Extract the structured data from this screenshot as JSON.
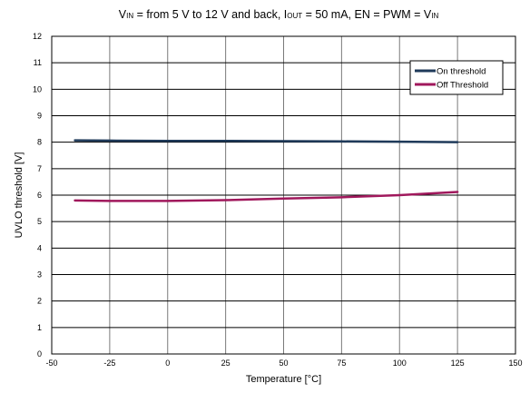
{
  "chart_data": {
    "type": "line",
    "title": {
      "parts": [
        {
          "t": "V"
        },
        {
          "t": "IN",
          "sub": true
        },
        {
          "t": " = from 5 V to 12 V and back, I"
        },
        {
          "t": "OUT",
          "sub": true
        },
        {
          "t": " = 50 mA, EN = PWM = V"
        },
        {
          "t": "IN",
          "sub": true
        }
      ]
    },
    "xlabel": "Temperature [°C]",
    "ylabel": "UVLO threshold [V]",
    "xlim": [
      -50,
      150
    ],
    "ylim": [
      0,
      12
    ],
    "x_ticks": [
      -50,
      -25,
      0,
      25,
      50,
      75,
      100,
      125,
      150
    ],
    "y_ticks": [
      0,
      1,
      2,
      3,
      4,
      5,
      6,
      7,
      8,
      9,
      10,
      11,
      12
    ],
    "x_tick_labels": [
      "-50",
      "-25",
      "0",
      "25",
      "50",
      "75",
      "100",
      "125",
      "150"
    ],
    "y_tick_labels": [
      "0",
      "1",
      "2",
      "3",
      "4",
      "5",
      "6",
      "7",
      "8",
      "9",
      "10",
      "11",
      "12"
    ],
    "grid": true,
    "legend": {
      "position": "top-right"
    },
    "series": [
      {
        "name": "On threshold",
        "color": "#1f3a5a",
        "x": [
          -40,
          -25,
          0,
          25,
          50,
          75,
          100,
          125
        ],
        "y": [
          8.07,
          8.06,
          8.05,
          8.05,
          8.04,
          8.03,
          8.02,
          8.0
        ]
      },
      {
        "name": "Off Threshold",
        "color": "#a0185c",
        "x": [
          -40,
          -25,
          0,
          25,
          50,
          75,
          100,
          125
        ],
        "y": [
          5.8,
          5.78,
          5.78,
          5.81,
          5.87,
          5.92,
          6.0,
          6.12
        ]
      }
    ]
  }
}
